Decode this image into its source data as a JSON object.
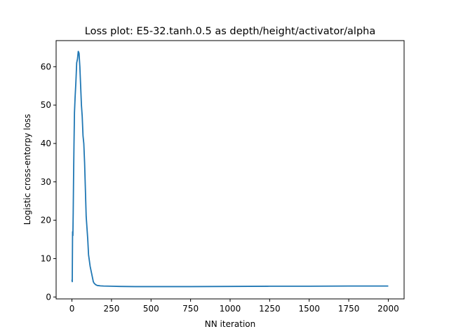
{
  "chart_data": {
    "type": "line",
    "title": "Loss plot: E5-32.tanh.0.5 as depth/height/activator/alpha",
    "xlabel": "NN iteration",
    "ylabel": "Logistic cross-entorpy loss",
    "xlim": [
      -100,
      2100
    ],
    "ylim": [
      -0.5,
      66.8
    ],
    "xticks": [
      0,
      250,
      500,
      750,
      1000,
      1250,
      1500,
      1750,
      2000
    ],
    "xtick_labels": [
      "0",
      "250",
      "500",
      "750",
      "1000",
      "1250",
      "1500",
      "1750",
      "2000"
    ],
    "yticks": [
      0,
      10,
      20,
      30,
      40,
      50,
      60
    ],
    "ytick_labels": [
      "0",
      "10",
      "20",
      "30",
      "40",
      "50",
      "60"
    ],
    "grid": false,
    "series": [
      {
        "color": "#1f77b4",
        "x": [
          0,
          2,
          4,
          6,
          8,
          10,
          13,
          16,
          20,
          25,
          30,
          35,
          40,
          45,
          50,
          55,
          60,
          65,
          70,
          75,
          80,
          85,
          90,
          95,
          100,
          105,
          110,
          115,
          120,
          125,
          130,
          135,
          140,
          145,
          150,
          160,
          170,
          180,
          200,
          250,
          300,
          400,
          500,
          750,
          1000,
          1250,
          1500,
          1750,
          2000
        ],
        "y": [
          4.5,
          4.0,
          17,
          16,
          22,
          30,
          40,
          48,
          52,
          56,
          61,
          62,
          64,
          63.5,
          60,
          55,
          50,
          47,
          42,
          40,
          35,
          28,
          21,
          18,
          15,
          11,
          9.5,
          8.0,
          7.0,
          6.0,
          5.0,
          4.0,
          3.6,
          3.4,
          3.2,
          3.0,
          2.95,
          2.9,
          2.85,
          2.8,
          2.75,
          2.7,
          2.7,
          2.7,
          2.75,
          2.8,
          2.8,
          2.85,
          2.85
        ]
      }
    ]
  }
}
